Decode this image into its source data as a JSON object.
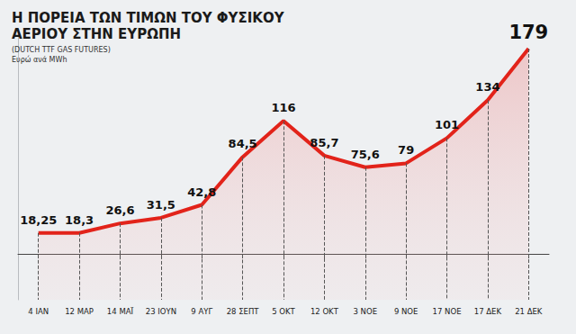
{
  "chart_data": {
    "type": "line",
    "title": "Η ΠΟΡΕΙΑ ΤΩΝ ΤΙΜΩΝ ΤΟΥ ΦΥΣΙΚΟΥ\nΑΕΡΙΟΥ ΣΤΗΝ ΕΥΡΩΠΗ",
    "subtitle": "(DUTCH TTF GAS FUTURES)",
    "ylabel": "Ευρώ ανά MWh",
    "categories": [
      "4 ΙΑΝ",
      "12 ΜΑΡ",
      "14 ΜΑΪ",
      "23 ΙΟΥΝ",
      "9 ΑΥΓ",
      "28 ΣΕΠΤ",
      "5 ΟΚΤ",
      "12 ΟΚΤ",
      "3 ΝΟΕ",
      "9 ΝΟΕ",
      "17 ΝΟΕ",
      "17 ΔΕΚ",
      "21 ΔΕΚ"
    ],
    "values": [
      18.25,
      18.3,
      26.6,
      31.5,
      42.8,
      84.5,
      116,
      85.7,
      75.6,
      79,
      101,
      134,
      179
    ],
    "value_labels": [
      "18,25",
      "18,3",
      "26,6",
      "31,5",
      "42,8",
      "84,5",
      "116",
      "85,7",
      "75,6",
      "79",
      "101",
      "134",
      "179"
    ],
    "color": "#e2231a",
    "marker": "none",
    "ylim": [
      -40,
      190
    ],
    "data_labels": true,
    "tick_labels": "x",
    "grid": false
  }
}
